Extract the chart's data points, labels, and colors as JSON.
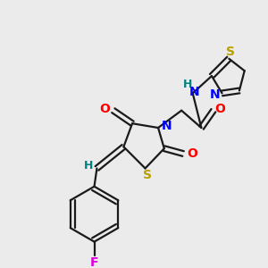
{
  "background_color": "#ebebeb",
  "fig_width": 3.0,
  "fig_height": 3.0,
  "dpi": 100,
  "black": "#1a1a1a",
  "colors": {
    "S": "#b8a000",
    "N": "#0000ff",
    "O": "#ff0000",
    "H": "#008080",
    "F": "#dd00dd"
  }
}
